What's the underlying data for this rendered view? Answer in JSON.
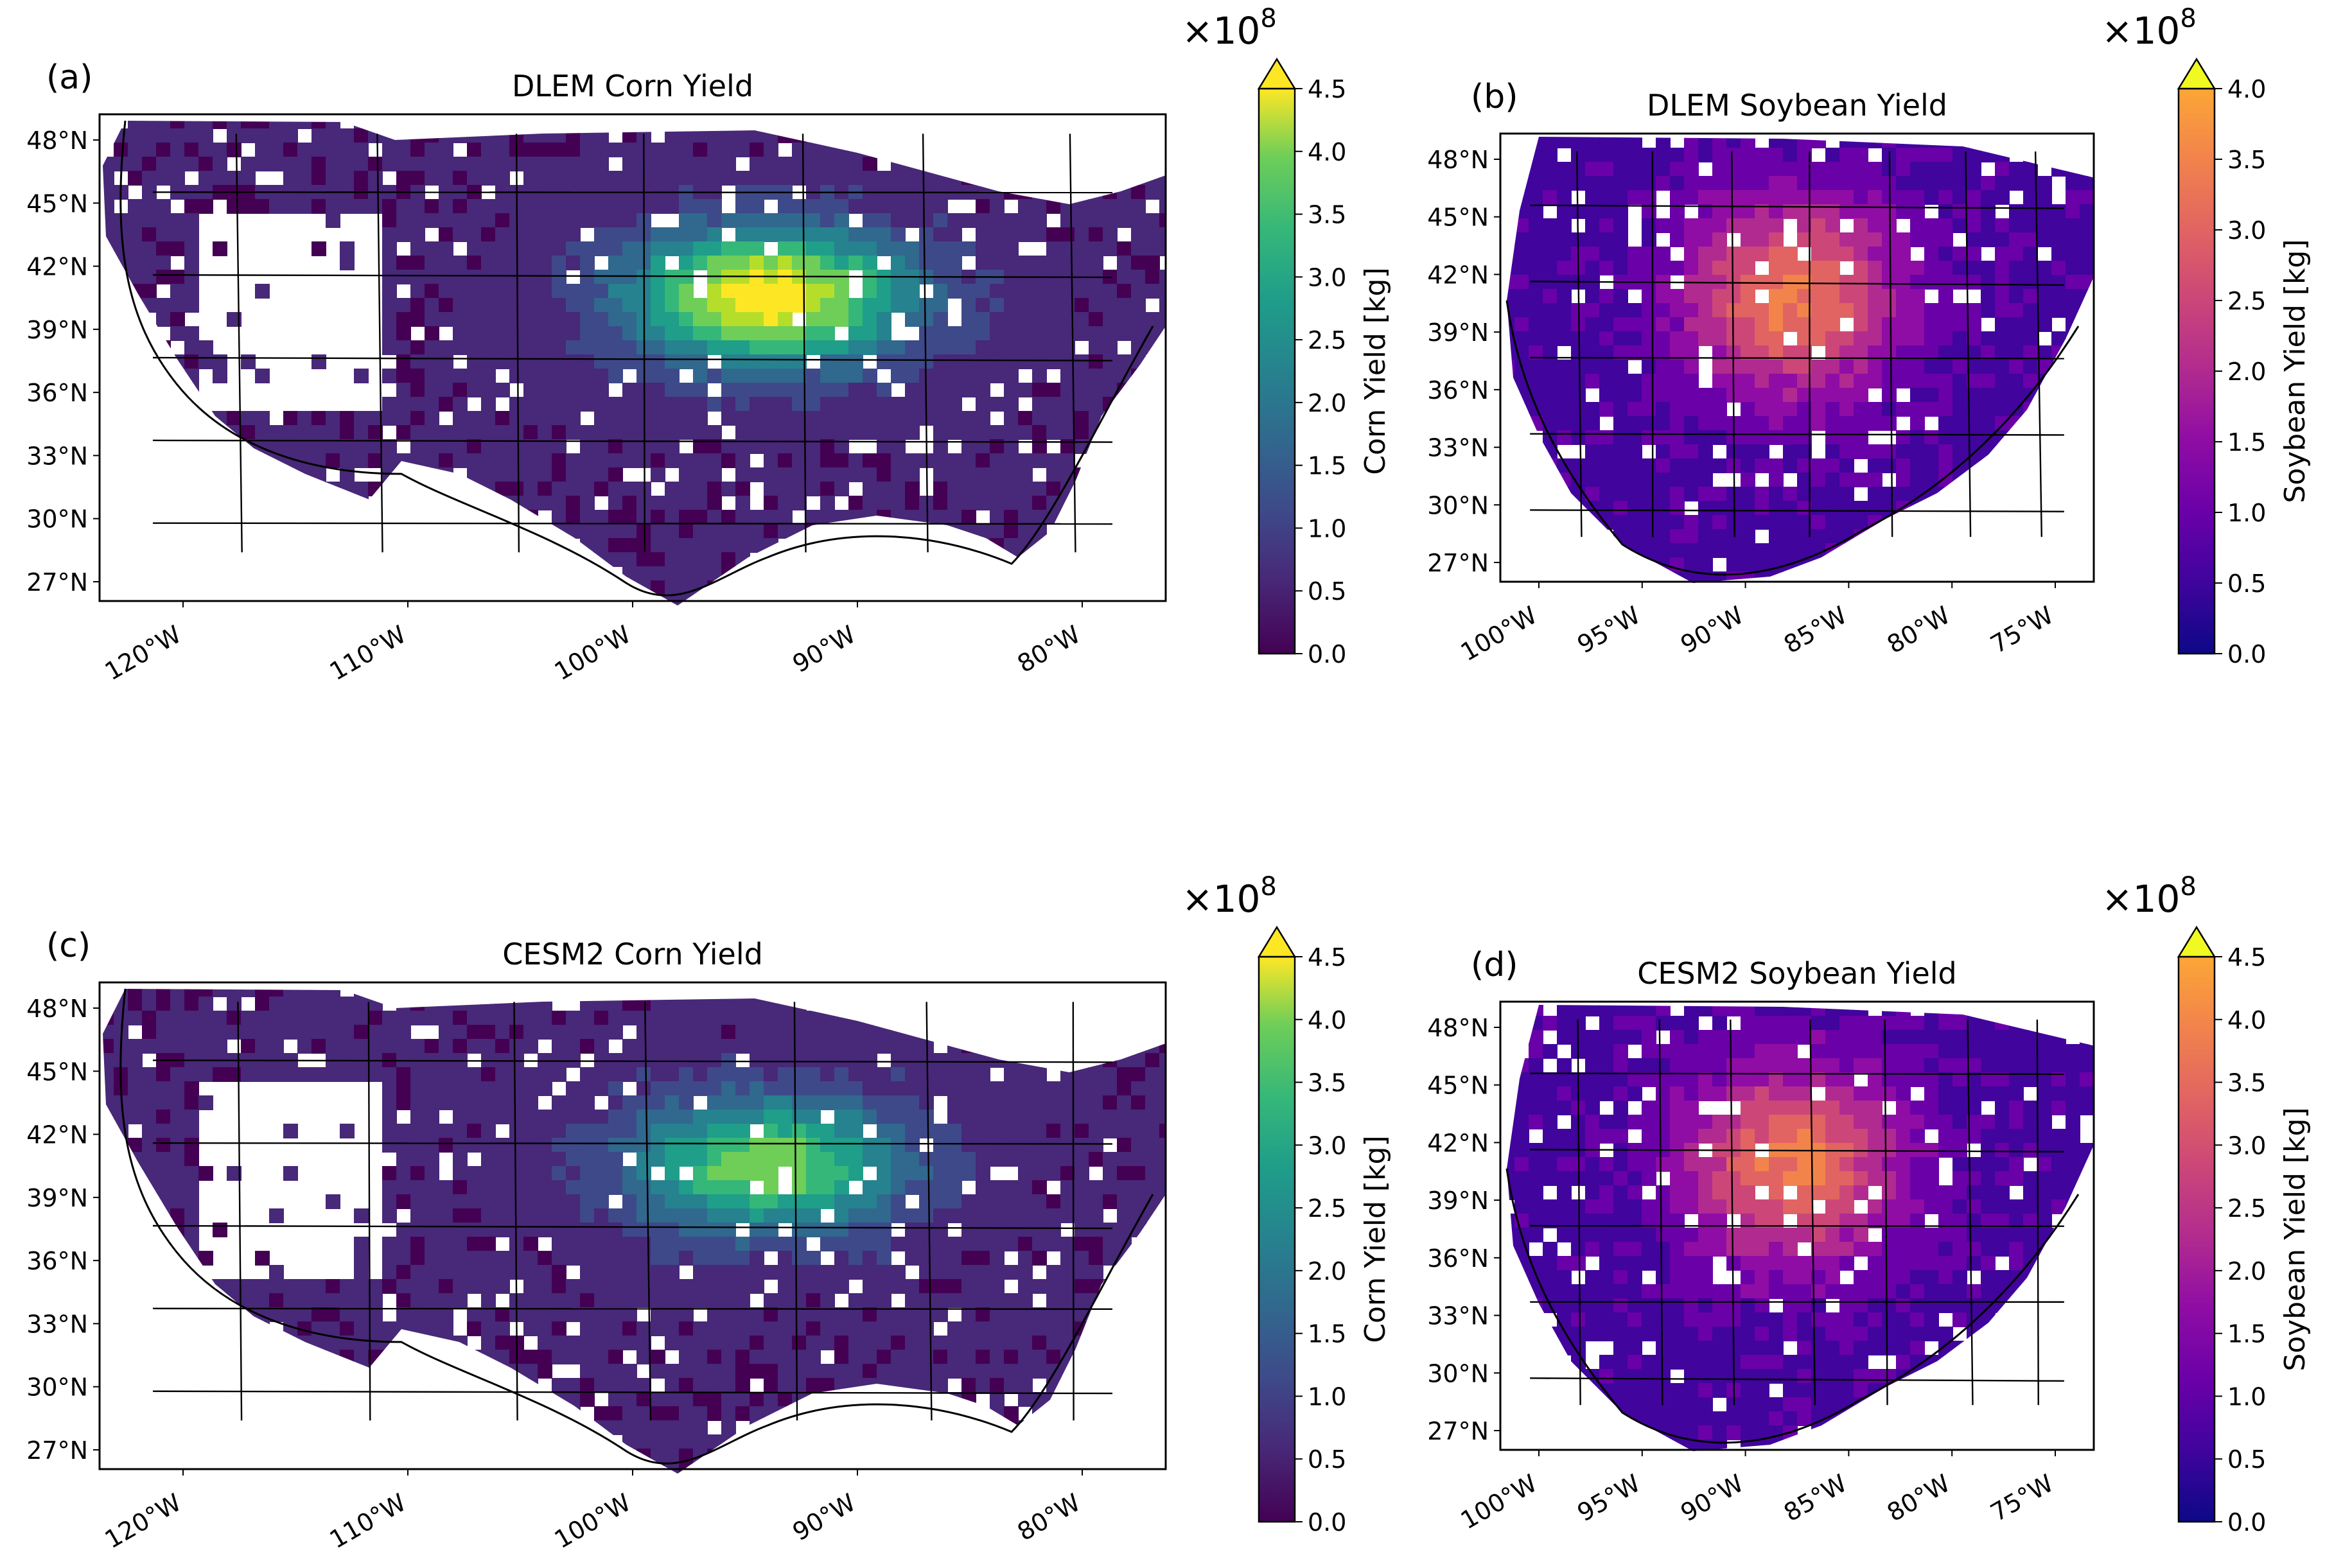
{
  "figure": {
    "panels": [
      {
        "letter": "(a)",
        "title": "DLEM Corn Yield",
        "colormap": "viridis",
        "lon_ticks": [
          "120°W",
          "110°W",
          "100°W",
          "90°W",
          "80°W"
        ],
        "lat_ticks": [
          "48°N",
          "45°N",
          "42°N",
          "39°N",
          "36°N",
          "33°N",
          "30°N",
          "27°N"
        ],
        "colorbar": {
          "label": "Corn Yield [kg]",
          "exponent": "×10",
          "exponent_power": "8",
          "ticks": [
            "0.0",
            "0.5",
            "1.0",
            "1.5",
            "2.0",
            "2.5",
            "3.0",
            "3.5",
            "4.0",
            "4.5"
          ],
          "range": [
            0,
            4.5
          ],
          "extend": "max"
        }
      },
      {
        "letter": "(b)",
        "title": "DLEM Soybean Yield",
        "colormap": "plasma",
        "lon_ticks": [
          "100°W",
          "95°W",
          "90°W",
          "85°W",
          "80°W",
          "75°W"
        ],
        "lat_ticks": [
          "48°N",
          "45°N",
          "42°N",
          "39°N",
          "36°N",
          "33°N",
          "30°N",
          "27°N"
        ],
        "colorbar": {
          "label": "Soybean Yield [kg]",
          "exponent": "×10",
          "exponent_power": "8",
          "ticks": [
            "0.0",
            "0.5",
            "1.0",
            "1.5",
            "2.0",
            "2.5",
            "3.0",
            "3.5",
            "4.0"
          ],
          "range": [
            0,
            4.0
          ],
          "extend": "max"
        }
      },
      {
        "letter": "(c)",
        "title": "CESM2 Corn Yield",
        "colormap": "viridis",
        "lon_ticks": [
          "120°W",
          "110°W",
          "100°W",
          "90°W",
          "80°W"
        ],
        "lat_ticks": [
          "48°N",
          "45°N",
          "42°N",
          "39°N",
          "36°N",
          "33°N",
          "30°N",
          "27°N"
        ],
        "colorbar": {
          "label": "Corn Yield [kg]",
          "exponent": "×10",
          "exponent_power": "8",
          "ticks": [
            "0.0",
            "0.5",
            "1.0",
            "1.5",
            "2.0",
            "2.5",
            "3.0",
            "3.5",
            "4.0",
            "4.5"
          ],
          "range": [
            0,
            4.5
          ],
          "extend": "max"
        }
      },
      {
        "letter": "(d)",
        "title": "CESM2 Soybean Yield",
        "colormap": "plasma",
        "lon_ticks": [
          "100°W",
          "95°W",
          "90°W",
          "85°W",
          "80°W",
          "75°W"
        ],
        "lat_ticks": [
          "48°N",
          "45°N",
          "42°N",
          "39°N",
          "36°N",
          "33°N",
          "30°N",
          "27°N"
        ],
        "colorbar": {
          "label": "Soybean Yield [kg]",
          "exponent": "×10",
          "exponent_power": "8",
          "ticks": [
            "0.0",
            "0.5",
            "1.0",
            "1.5",
            "2.0",
            "2.5",
            "3.0",
            "3.5",
            "4.0",
            "4.5"
          ],
          "range": [
            0,
            4.5
          ],
          "extend": "max"
        }
      }
    ]
  }
}
